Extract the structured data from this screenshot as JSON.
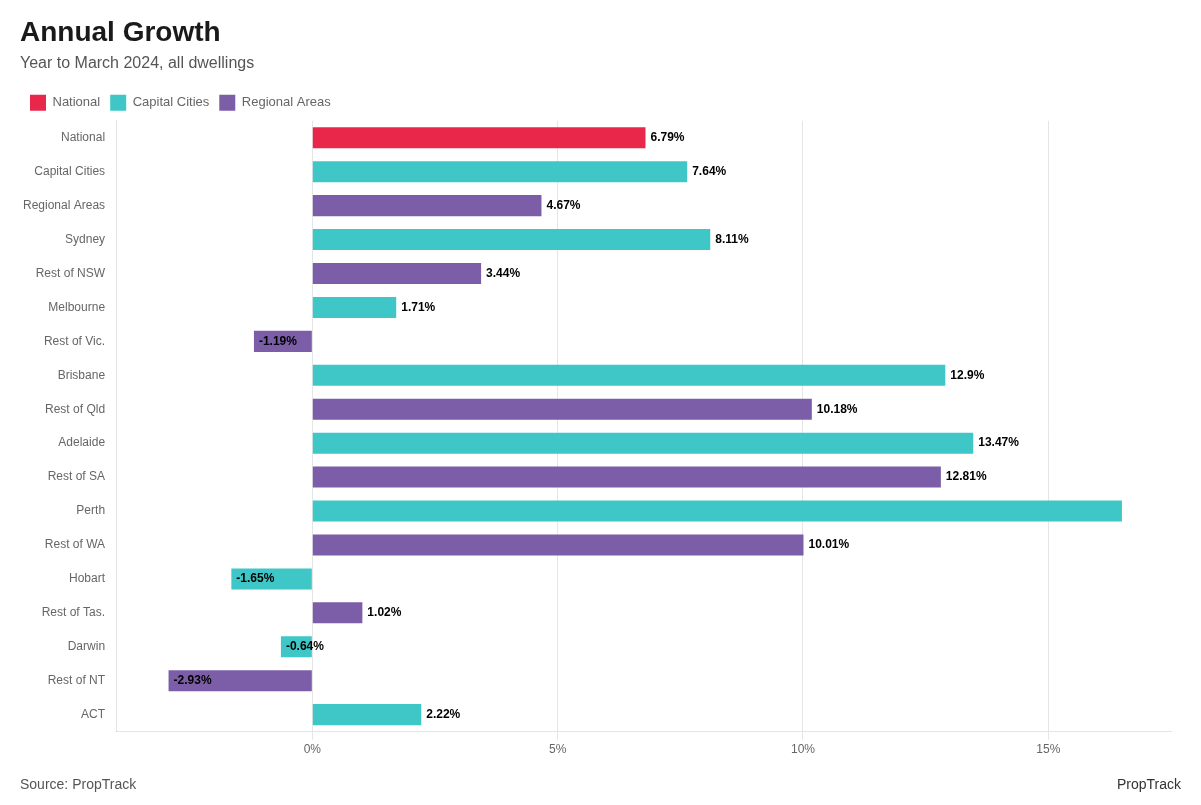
{
  "chart_data": {
    "type": "bar",
    "orientation": "horizontal",
    "title": "Annual Growth",
    "subtitle": "Year to March 2024, all dwellings",
    "annotations": [
      "Source: PropTrack",
      "PropTrack"
    ],
    "categories": [
      "National",
      "Capital Cities",
      "Regional Areas",
      "Sydney",
      "Rest of NSW",
      "Melbourne",
      "Rest of Vic.",
      "Brisbane",
      "Rest of Qld",
      "Adelaide",
      "Rest of SA",
      "Perth",
      "Rest of WA",
      "Hobart",
      "Rest of Tas.",
      "Darwin",
      "Rest of NT",
      "ACT"
    ],
    "series": [
      {
        "name": "National",
        "color": "#e8274b",
        "values": [
          6.79,
          null,
          null,
          null,
          null,
          null,
          null,
          null,
          null,
          null,
          null,
          null,
          null,
          null,
          null,
          null,
          null,
          null
        ],
        "value_labels": [
          "6.79%",
          null,
          null,
          null,
          null,
          null,
          null,
          null,
          null,
          null,
          null,
          null,
          null,
          null,
          null,
          null,
          null,
          null
        ]
      },
      {
        "name": "Capital Cities",
        "color": "#3fc6c6",
        "values": [
          null,
          7.64,
          null,
          8.11,
          null,
          1.71,
          null,
          12.9,
          null,
          13.47,
          null,
          16.5,
          null,
          -1.65,
          null,
          -0.64,
          null,
          2.22
        ],
        "value_labels": [
          null,
          "7.64%",
          null,
          "8.11%",
          null,
          "1.71%",
          null,
          "12.9%",
          null,
          "13.47%",
          null,
          null,
          null,
          "-1.65%",
          null,
          "-0.64%",
          null,
          "2.22%"
        ]
      },
      {
        "name": "Regional Areas",
        "color": "#7b5ea7",
        "values": [
          null,
          null,
          4.67,
          null,
          3.44,
          null,
          -1.19,
          null,
          10.18,
          null,
          12.81,
          null,
          10.01,
          null,
          1.02,
          null,
          -2.93,
          null
        ],
        "value_labels": [
          null,
          null,
          "4.67%",
          null,
          "3.44%",
          null,
          "-1.19%",
          null,
          "10.18%",
          null,
          "12.81%",
          null,
          "10.01%",
          null,
          "1.02%",
          null,
          "-2.93%",
          null
        ]
      }
    ],
    "xlim": [
      -4,
      17.5
    ],
    "xticks": [
      {
        "value": 0,
        "label": "0%"
      },
      {
        "value": 5,
        "label": "5%"
      },
      {
        "value": 10,
        "label": "10%"
      },
      {
        "value": 15,
        "label": "15%"
      }
    ],
    "grid": true,
    "legend": "top-left",
    "data_labels": true
  }
}
